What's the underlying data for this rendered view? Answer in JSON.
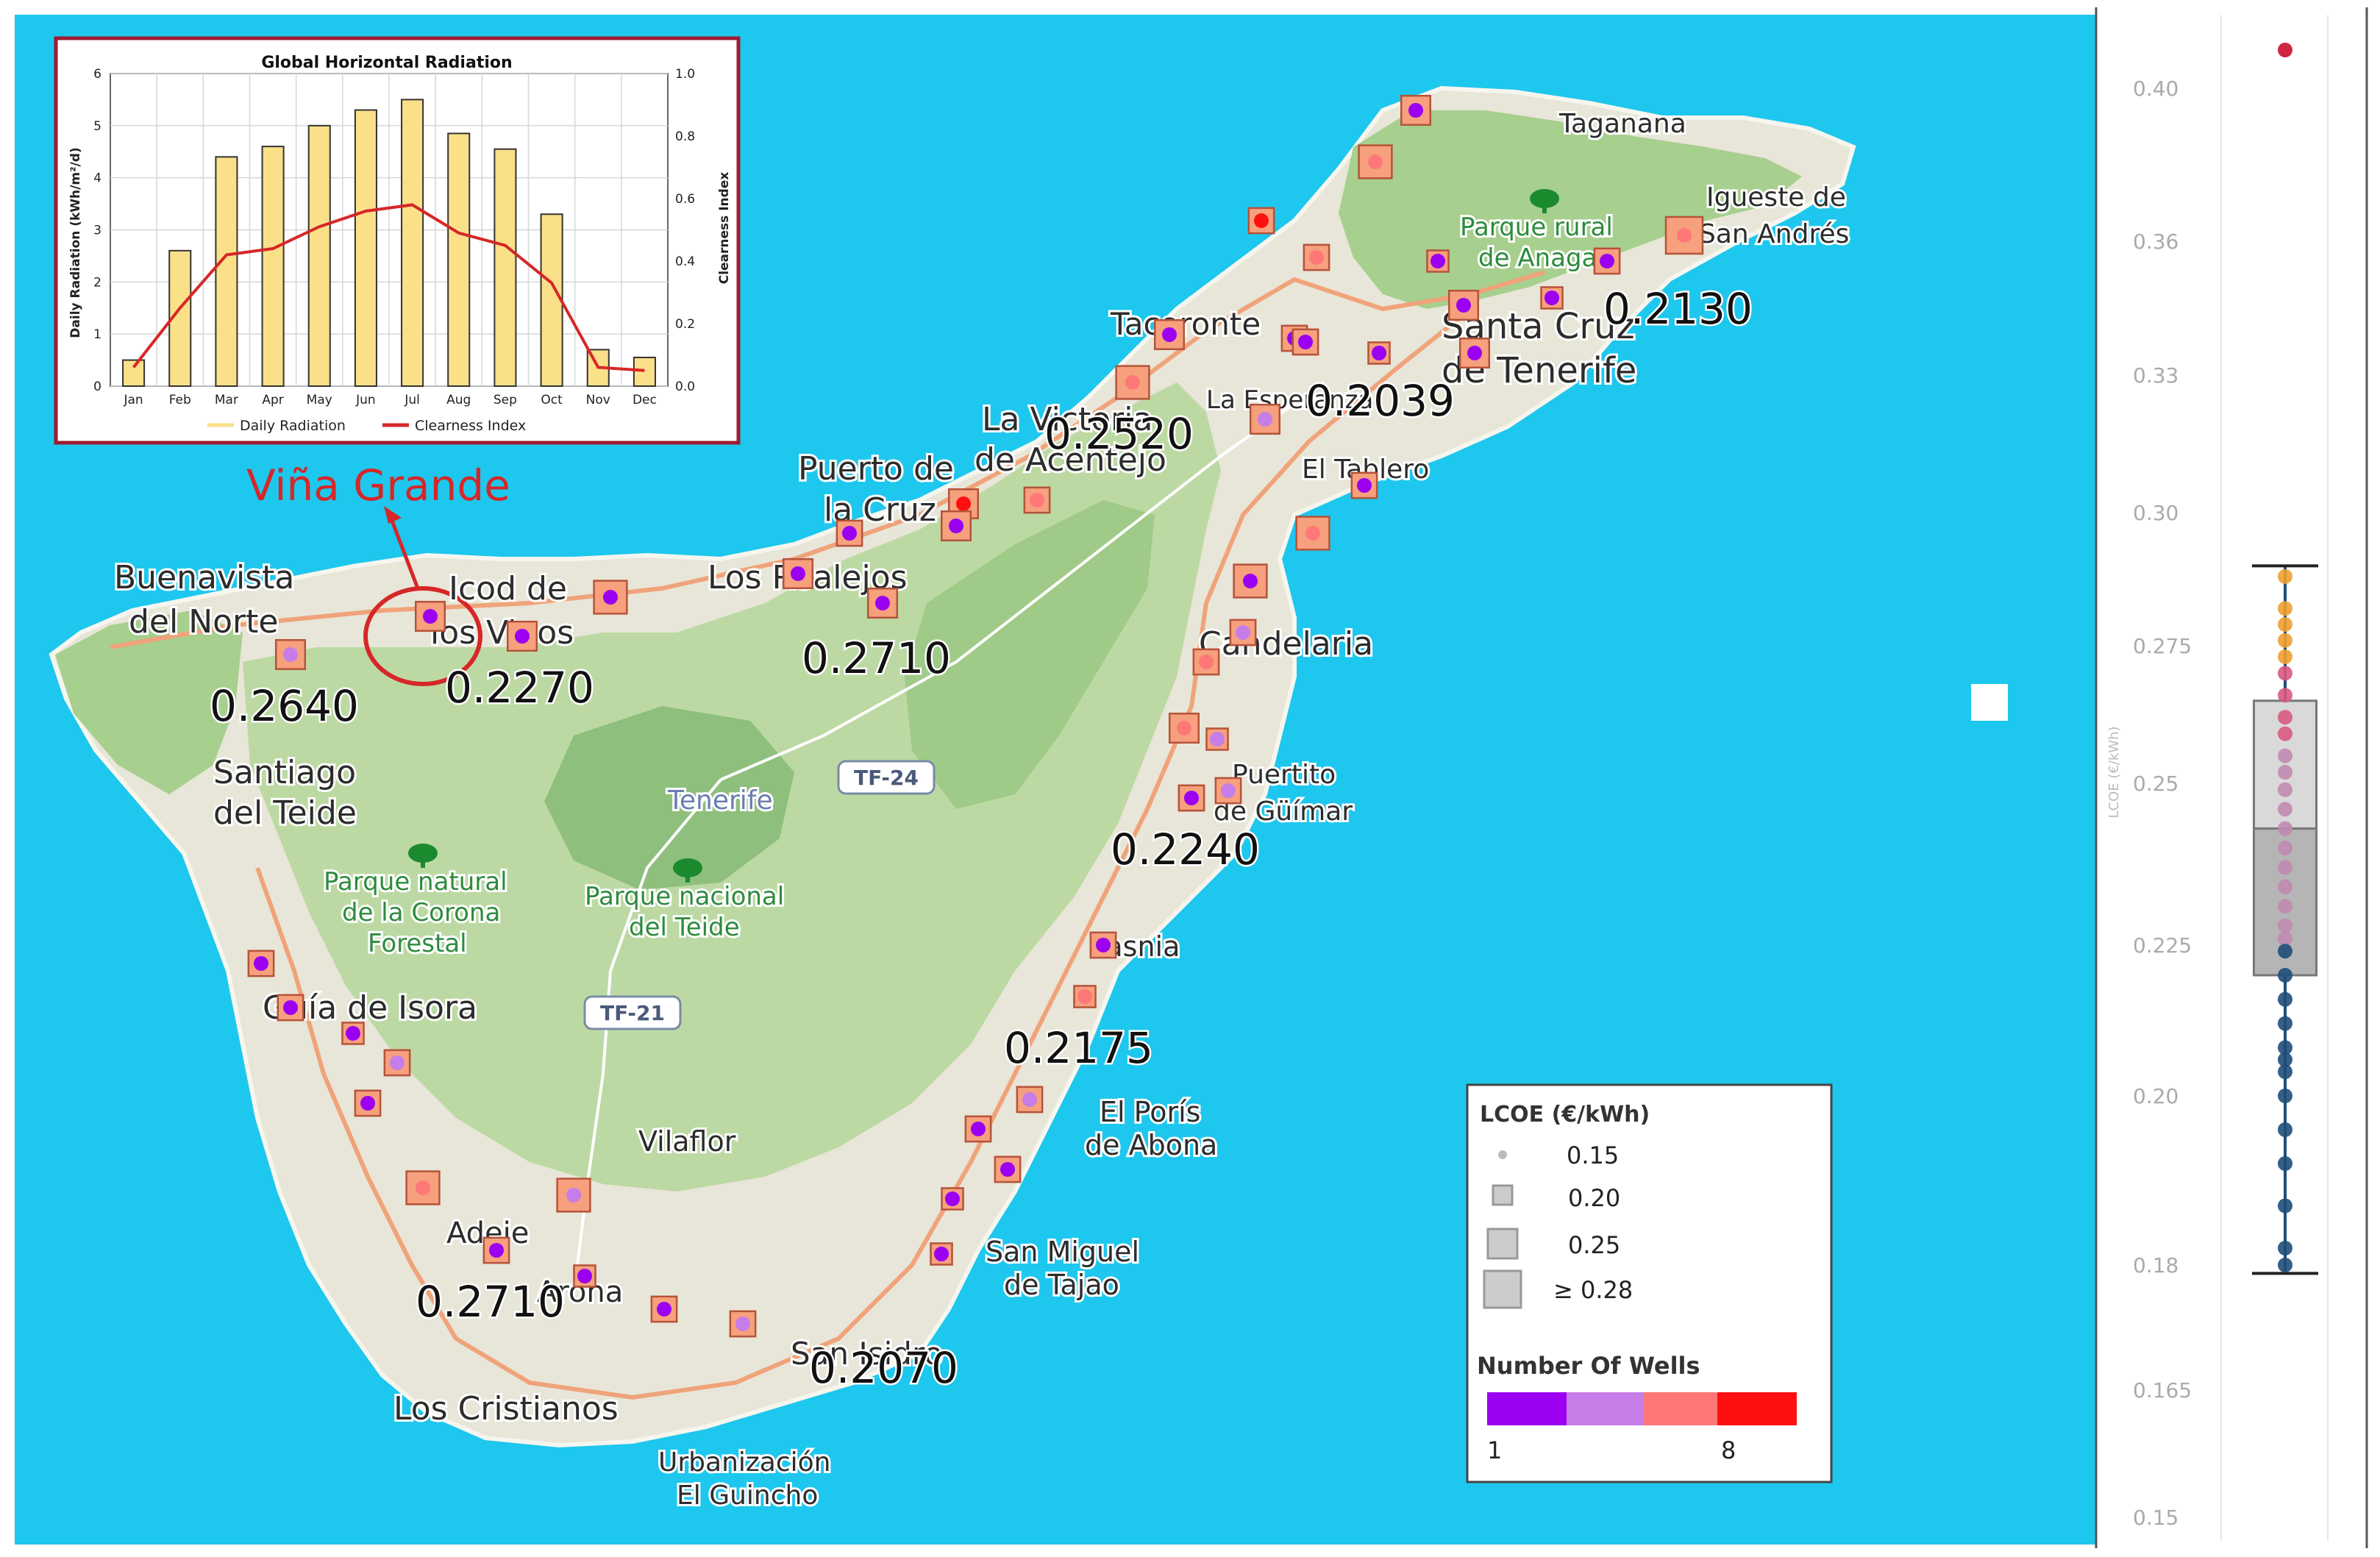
{
  "colors": {
    "sea": "#1ec7ee",
    "land": "#e8e6d8",
    "forest": "#b9d8a0",
    "forest_dark": "#8fbf7c",
    "road": "#f0a37a",
    "annotation_red": "#d62728",
    "marker_fill": "#f6a07d",
    "dot_purple": "#9b00f0",
    "dot_lilac": "#c77de8",
    "dot_salmon": "#ff7878",
    "dot_red": "#ff1010",
    "bar_fill": "#fbe08a",
    "clearness_line": "#d62728",
    "box_dark": "#1f4e79",
    "box_mid": "#c25a8a"
  },
  "inset_chart": {
    "chart_data": {
      "type": "bar",
      "title": "Global Horizontal Radiation",
      "categories": [
        "Jan",
        "Feb",
        "Mar",
        "Apr",
        "May",
        "Jun",
        "Jul",
        "Aug",
        "Sep",
        "Oct",
        "Nov",
        "Dec"
      ],
      "series": [
        {
          "name": "Daily Radiation",
          "values": [
            0.5,
            2.6,
            4.4,
            4.6,
            5.0,
            5.3,
            5.5,
            4.85,
            4.55,
            3.3,
            0.7,
            0.55
          ],
          "axis": "left"
        },
        {
          "name": "Clearness Index",
          "values": [
            0.06,
            0.25,
            0.42,
            0.44,
            0.51,
            0.56,
            0.58,
            0.49,
            0.45,
            0.33,
            0.06,
            0.05
          ],
          "axis": "right"
        }
      ],
      "ylabel": "Daily Radiation (kWh/m²/d)",
      "y2label": "Clearness Index",
      "ylim": [
        0,
        6
      ],
      "y2lim": [
        0,
        1.0
      ],
      "yticks": [
        "0",
        "1",
        "2",
        "3",
        "4",
        "5",
        "6"
      ],
      "y2ticks": [
        "0.0",
        "0.2",
        "0.4",
        "0.6",
        "0.8",
        "1.0"
      ],
      "grid": true,
      "legend": "bottom"
    }
  },
  "annotation": {
    "label": "Viña Grande"
  },
  "map_labels": [
    {
      "key": "taganana",
      "text": "Taganana"
    },
    {
      "key": "igueste1",
      "text": "Igueste de"
    },
    {
      "key": "igueste2",
      "text": "San Andrés"
    },
    {
      "key": "anaga1",
      "text": "Parque rural"
    },
    {
      "key": "anaga2",
      "text": "de Anaga"
    },
    {
      "key": "santacruz1",
      "text": "Santa Cruz"
    },
    {
      "key": "santacruz2",
      "text": "de Tenerife"
    },
    {
      "key": "tacoronte",
      "text": "Tacoronte"
    },
    {
      "key": "esperanza",
      "text": "La Esperanza"
    },
    {
      "key": "tablero",
      "text": "El Tablero"
    },
    {
      "key": "victoria1",
      "text": "La Victoria"
    },
    {
      "key": "victoria2",
      "text": "de Acentejo"
    },
    {
      "key": "puerto1",
      "text": "Puerto de"
    },
    {
      "key": "puerto2",
      "text": "la Cruz"
    },
    {
      "key": "realejos",
      "text": "Los Realejos"
    },
    {
      "key": "icod1",
      "text": "Icod de"
    },
    {
      "key": "icod2",
      "text": "los Vinos"
    },
    {
      "key": "buenavista1",
      "text": "Buenavista"
    },
    {
      "key": "buenavista2",
      "text": "del Norte"
    },
    {
      "key": "santiago1",
      "text": "Santiago"
    },
    {
      "key": "santiago2",
      "text": "del Teide"
    },
    {
      "key": "tenerife",
      "text": "Tenerife"
    },
    {
      "key": "candelaria",
      "text": "Candelaria"
    },
    {
      "key": "guimar1",
      "text": "Puertito"
    },
    {
      "key": "guimar2",
      "text": "de Güímar"
    },
    {
      "key": "corona1",
      "text": "Parque natural"
    },
    {
      "key": "corona2",
      "text": "de la Corona"
    },
    {
      "key": "corona3",
      "text": "Forestal"
    },
    {
      "key": "teide1",
      "text": "Parque nacional"
    },
    {
      "key": "teide2",
      "text": "del Teide"
    },
    {
      "key": "guia",
      "text": "Guía de Isora"
    },
    {
      "key": "fasnia",
      "text": "Fasnia"
    },
    {
      "key": "vilaflor",
      "text": "Vilaflor"
    },
    {
      "key": "poris1",
      "text": "El Porís"
    },
    {
      "key": "poris2",
      "text": "de Abona"
    },
    {
      "key": "adeje",
      "text": "Adeje"
    },
    {
      "key": "arona",
      "text": "Arona"
    },
    {
      "key": "sanmiguel1",
      "text": "San Miguel"
    },
    {
      "key": "sanmiguel2",
      "text": "de Tajao"
    },
    {
      "key": "sanisidro",
      "text": "San Isidro"
    },
    {
      "key": "cristianos",
      "text": "Los Cristianos"
    },
    {
      "key": "guincho1",
      "text": "Urbanización"
    },
    {
      "key": "guincho2",
      "text": "El Guincho"
    }
  ],
  "road_shields": [
    {
      "key": "tf24",
      "text": "TF-24"
    },
    {
      "key": "tf21",
      "text": "TF-21"
    }
  ],
  "lcoe_values": [
    {
      "key": "v0213",
      "text": "0.2130"
    },
    {
      "key": "v02039",
      "text": "0.2039"
    },
    {
      "key": "v02520",
      "text": "0.2520"
    },
    {
      "key": "v02710n",
      "text": "0.2710"
    },
    {
      "key": "v02270",
      "text": "0.2270"
    },
    {
      "key": "v02640",
      "text": "0.2640"
    },
    {
      "key": "v02240",
      "text": "0.2240"
    },
    {
      "key": "v02175",
      "text": "0.2175"
    },
    {
      "key": "v02710s",
      "text": "0.2710"
    },
    {
      "key": "v02070",
      "text": "0.2070"
    }
  ],
  "wells": [
    {
      "lcoe": 0.24,
      "wells": 1
    },
    {
      "lcoe": 0.26,
      "wells": 4
    },
    {
      "lcoe": 0.22,
      "wells": 8
    },
    {
      "lcoe": 0.22,
      "wells": 4
    },
    {
      "lcoe": 0.2,
      "wells": 1
    },
    {
      "lcoe": 0.22,
      "wells": 1
    },
    {
      "lcoe": 0.28,
      "wells": 4
    },
    {
      "lcoe": 0.24,
      "wells": 1
    },
    {
      "lcoe": 0.2,
      "wells": 1
    },
    {
      "lcoe": 0.22,
      "wells": 1
    },
    {
      "lcoe": 0.24,
      "wells": 1
    },
    {
      "lcoe": 0.22,
      "wells": 1
    },
    {
      "lcoe": 0.2,
      "wells": 1
    },
    {
      "lcoe": 0.24,
      "wells": 1
    },
    {
      "lcoe": 0.26,
      "wells": 4
    },
    {
      "lcoe": 0.24,
      "wells": 2
    },
    {
      "lcoe": 0.22,
      "wells": 1
    },
    {
      "lcoe": 0.26,
      "wells": 4
    },
    {
      "lcoe": 0.24,
      "wells": 8
    },
    {
      "lcoe": 0.22,
      "wells": 4
    },
    {
      "lcoe": 0.24,
      "wells": 1
    },
    {
      "lcoe": 0.22,
      "wells": 1
    },
    {
      "lcoe": 0.24,
      "wells": 1
    },
    {
      "lcoe": 0.24,
      "wells": 1
    },
    {
      "lcoe": 0.26,
      "wells": 1
    },
    {
      "lcoe": 0.24,
      "wells": 1
    },
    {
      "lcoe": 0.24,
      "wells": 1
    },
    {
      "lcoe": 0.24,
      "wells": 2
    },
    {
      "lcoe": 0.26,
      "wells": 1
    },
    {
      "lcoe": 0.22,
      "wells": 2
    },
    {
      "lcoe": 0.22,
      "wells": 4
    },
    {
      "lcoe": 0.24,
      "wells": 4
    },
    {
      "lcoe": 0.2,
      "wells": 2
    },
    {
      "lcoe": 0.22,
      "wells": 1
    },
    {
      "lcoe": 0.22,
      "wells": 2
    },
    {
      "lcoe": 0.22,
      "wells": 1
    },
    {
      "lcoe": 0.22,
      "wells": 1
    },
    {
      "lcoe": 0.2,
      "wells": 1
    },
    {
      "lcoe": 0.22,
      "wells": 2
    },
    {
      "lcoe": 0.22,
      "wells": 1
    },
    {
      "lcoe": 0.22,
      "wells": 1
    },
    {
      "lcoe": 0.2,
      "wells": 4
    },
    {
      "lcoe": 0.22,
      "wells": 2
    },
    {
      "lcoe": 0.22,
      "wells": 1
    },
    {
      "lcoe": 0.22,
      "wells": 1
    },
    {
      "lcoe": 0.2,
      "wells": 1
    },
    {
      "lcoe": 0.2,
      "wells": 1
    },
    {
      "lcoe": 0.26,
      "wells": 4
    },
    {
      "lcoe": 0.26,
      "wells": 2
    },
    {
      "lcoe": 0.22,
      "wells": 1
    },
    {
      "lcoe": 0.2,
      "wells": 1
    },
    {
      "lcoe": 0.22,
      "wells": 1
    },
    {
      "lcoe": 0.22,
      "wells": 2
    }
  ],
  "legend": {
    "size_title": "LCOE (€/kWh)",
    "size_items": [
      "0.15",
      "0.20",
      "0.25",
      "≥ 0.28"
    ],
    "color_title": "Number Of Wells",
    "color_min": "1",
    "color_max": "8"
  },
  "boxplot": {
    "chart_data": {
      "type": "scatter",
      "ylabel": "LCOE (€/kWh)",
      "ylim": [
        0.148,
        0.413
      ],
      "yticks": [
        "0.40",
        "0.36",
        "0.33",
        "0.30",
        "0.275",
        "0.25",
        "0.225",
        "0.20",
        "0.18",
        "0.165",
        "0.15"
      ],
      "whisker_low": 0.179,
      "q1": 0.22,
      "median": 0.243,
      "q3": 0.265,
      "whisker_high": 0.29,
      "outliers": [
        0.41
      ],
      "points": [
        0.41,
        0.288,
        0.282,
        0.279,
        0.276,
        0.273,
        0.27,
        0.266,
        0.262,
        0.259,
        0.255,
        0.252,
        0.249,
        0.246,
        0.243,
        0.24,
        0.237,
        0.234,
        0.231,
        0.228,
        0.226,
        0.224,
        0.22,
        0.216,
        0.212,
        0.208,
        0.206,
        0.204,
        0.2,
        0.196,
        0.192,
        0.187,
        0.182,
        0.18
      ]
    }
  }
}
